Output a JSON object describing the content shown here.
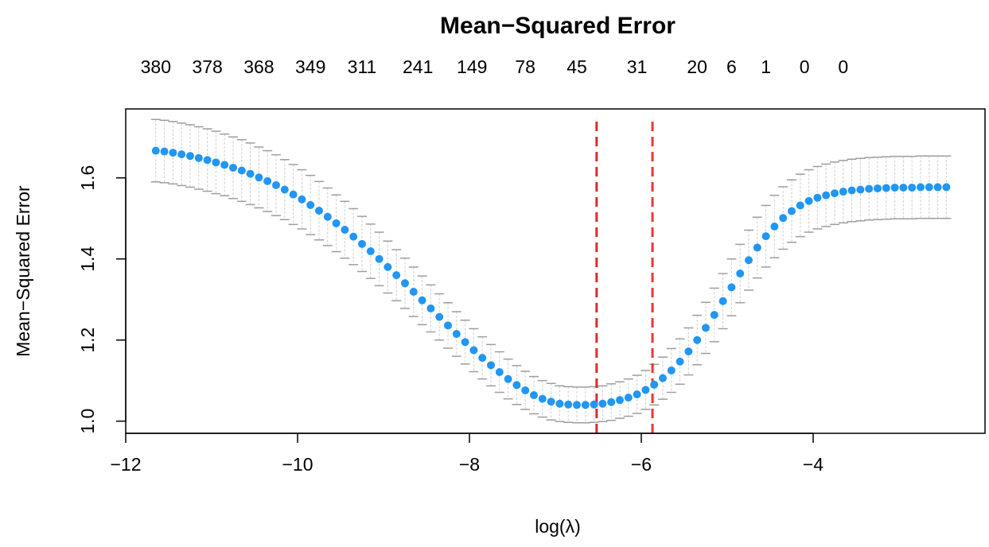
{
  "chart_data": {
    "type": "scatter",
    "title": "Mean−Squared Error",
    "xlabel": "log(λ)",
    "ylabel": "Mean−Squared Error",
    "xlim": [
      -12,
      -2
    ],
    "ylim": [
      0.97,
      1.77
    ],
    "x_ticks": [
      -12,
      -10,
      -8,
      -6,
      -4
    ],
    "x_tick_labels": [
      "−12",
      "−10",
      "−8",
      "−6",
      "−4"
    ],
    "y_ticks": [
      1.0,
      1.2,
      1.4,
      1.6
    ],
    "y_tick_labels": [
      "1.0",
      "1.2",
      "1.4",
      "1.6"
    ],
    "top_axis": {
      "positions": [
        -11.65,
        -11.05,
        -10.45,
        -9.85,
        -9.25,
        -8.6,
        -7.97,
        -7.35,
        -6.75,
        -6.05,
        -5.35,
        -4.95,
        -4.55,
        -4.1,
        -3.65
      ],
      "labels": [
        "380",
        "378",
        "368",
        "349",
        "311",
        "241",
        "149",
        "78",
        "45",
        "31",
        "20",
        "6",
        "1",
        "0",
        "0"
      ]
    },
    "log_lambda": [
      -11.65,
      -11.55,
      -11.45,
      -11.35,
      -11.25,
      -11.15,
      -11.05,
      -10.95,
      -10.85,
      -10.75,
      -10.65,
      -10.55,
      -10.45,
      -10.35,
      -10.25,
      -10.15,
      -10.05,
      -9.95,
      -9.85,
      -9.75,
      -9.65,
      -9.55,
      -9.45,
      -9.35,
      -9.25,
      -9.15,
      -9.05,
      -8.95,
      -8.85,
      -8.75,
      -8.65,
      -8.55,
      -8.45,
      -8.35,
      -8.25,
      -8.15,
      -8.05,
      -7.95,
      -7.85,
      -7.75,
      -7.65,
      -7.55,
      -7.45,
      -7.35,
      -7.25,
      -7.15,
      -7.05,
      -6.95,
      -6.85,
      -6.75,
      -6.65,
      -6.55,
      -6.45,
      -6.35,
      -6.25,
      -6.15,
      -6.05,
      -5.95,
      -5.85,
      -5.75,
      -5.65,
      -5.55,
      -5.45,
      -5.35,
      -5.25,
      -5.15,
      -5.05,
      -4.95,
      -4.85,
      -4.75,
      -4.65,
      -4.55,
      -4.45,
      -4.35,
      -4.25,
      -4.15,
      -4.05,
      -3.95,
      -3.85,
      -3.75,
      -3.65,
      -3.55,
      -3.45,
      -3.35,
      -3.25,
      -3.15,
      -3.05,
      -2.95,
      -2.85,
      -2.75,
      -2.65,
      -2.55,
      -2.45
    ],
    "cvm": [
      1.667,
      1.665,
      1.662,
      1.658,
      1.654,
      1.649,
      1.644,
      1.638,
      1.632,
      1.625,
      1.618,
      1.61,
      1.601,
      1.592,
      1.582,
      1.571,
      1.559,
      1.547,
      1.533,
      1.519,
      1.504,
      1.488,
      1.472,
      1.455,
      1.437,
      1.419,
      1.4,
      1.38,
      1.36,
      1.34,
      1.319,
      1.298,
      1.278,
      1.257,
      1.236,
      1.215,
      1.195,
      1.175,
      1.156,
      1.138,
      1.121,
      1.104,
      1.089,
      1.076,
      1.064,
      1.055,
      1.048,
      1.043,
      1.041,
      1.04,
      1.04,
      1.041,
      1.043,
      1.047,
      1.052,
      1.058,
      1.066,
      1.077,
      1.09,
      1.106,
      1.125,
      1.147,
      1.172,
      1.2,
      1.23,
      1.262,
      1.296,
      1.33,
      1.364,
      1.397,
      1.428,
      1.456,
      1.48,
      1.501,
      1.518,
      1.532,
      1.543,
      1.551,
      1.557,
      1.562,
      1.566,
      1.569,
      1.571,
      1.573,
      1.574,
      1.575,
      1.576,
      1.576,
      1.576,
      1.577,
      1.577,
      1.577,
      1.577
    ],
    "error_halfwidth": [
      0.077,
      0.077,
      0.077,
      0.077,
      0.077,
      0.077,
      0.077,
      0.077,
      0.076,
      0.076,
      0.076,
      0.076,
      0.075,
      0.075,
      0.075,
      0.074,
      0.074,
      0.073,
      0.073,
      0.072,
      0.071,
      0.07,
      0.07,
      0.069,
      0.068,
      0.067,
      0.066,
      0.064,
      0.063,
      0.062,
      0.061,
      0.06,
      0.058,
      0.057,
      0.056,
      0.055,
      0.054,
      0.053,
      0.052,
      0.051,
      0.05,
      0.049,
      0.048,
      0.047,
      0.046,
      0.045,
      0.045,
      0.044,
      0.044,
      0.044,
      0.044,
      0.044,
      0.044,
      0.045,
      0.045,
      0.046,
      0.047,
      0.048,
      0.05,
      0.052,
      0.054,
      0.056,
      0.058,
      0.061,
      0.063,
      0.066,
      0.068,
      0.07,
      0.072,
      0.074,
      0.075,
      0.076,
      0.077,
      0.077,
      0.077,
      0.077,
      0.077,
      0.077,
      0.077,
      0.077,
      0.077,
      0.077,
      0.077,
      0.077,
      0.077,
      0.077,
      0.077,
      0.077,
      0.077,
      0.077,
      0.077,
      0.077,
      0.077
    ],
    "vlines": [
      -6.52,
      -5.87
    ],
    "grid": false,
    "colors": {
      "points": "#2196f3",
      "error_bars": "#9e9e9e",
      "vline_min": "#d32f2f",
      "vline_1se": "#e53935"
    }
  }
}
